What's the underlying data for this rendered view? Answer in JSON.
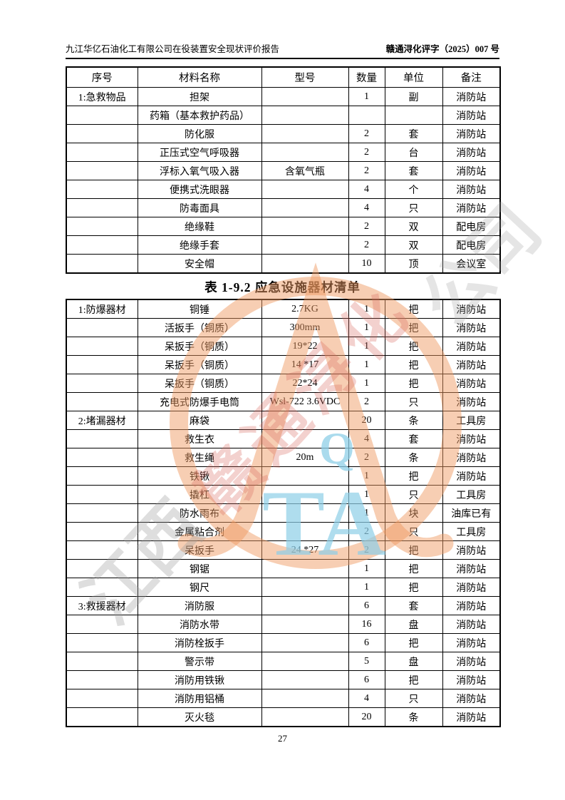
{
  "header": {
    "left": "九江华亿石油化工有限公司在役装置安全现状评价报告",
    "right": "赣通浔化评字（2025）007 号"
  },
  "caption": "表 1-9.2  应急设施器材清单",
  "page_number": "27",
  "table1": {
    "columns": [
      "序号",
      "材料名称",
      "型号",
      "数量",
      "单位",
      "备注"
    ],
    "rows": [
      [
        "1:急救物品",
        "担架",
        "",
        "1",
        "副",
        "消防站"
      ],
      [
        "",
        "药箱（基本救护药品）",
        "",
        "",
        "",
        "消防站"
      ],
      [
        "",
        "防化服",
        "",
        "2",
        "套",
        "消防站"
      ],
      [
        "",
        "正压式空气呼吸器",
        "",
        "2",
        "台",
        "消防站"
      ],
      [
        "",
        "浮标入氧气吸入器",
        "含氧气瓶",
        "2",
        "套",
        "消防站"
      ],
      [
        "",
        "便携式洗眼器",
        "",
        "4",
        "个",
        "消防站"
      ],
      [
        "",
        "防毒面具",
        "",
        "4",
        "只",
        "消防站"
      ],
      [
        "",
        "绝缘鞋",
        "",
        "2",
        "双",
        "配电房"
      ],
      [
        "",
        "绝缘手套",
        "",
        "2",
        "双",
        "配电房"
      ],
      [
        "",
        "安全帽",
        "",
        "10",
        "顶",
        "会议室"
      ]
    ]
  },
  "table2": {
    "rows": [
      [
        "1:防爆器材",
        "铜锤",
        "2.7KG",
        "1",
        "把",
        "消防站"
      ],
      [
        "",
        "活扳手（铜质）",
        "300mm",
        "1",
        "把",
        "消防站"
      ],
      [
        "",
        "呆扳手（铜质）",
        "19*22",
        "1",
        "把",
        "消防站"
      ],
      [
        "",
        "呆扳手（铜质）",
        "14 *17",
        "1",
        "把",
        "消防站"
      ],
      [
        "",
        "呆扳手（铜质）",
        "22*24",
        "1",
        "把",
        "消防站"
      ],
      [
        "",
        "充电式防爆手电筒",
        "Wsl-722 3.6VDC",
        "2",
        "只",
        "消防站"
      ],
      [
        "2:堵漏器材",
        "麻袋",
        "",
        "20",
        "条",
        "工具房"
      ],
      [
        "",
        "救生衣",
        "",
        "4",
        "套",
        "消防站"
      ],
      [
        "",
        "救生绳",
        "20m",
        "2",
        "条",
        "消防站"
      ],
      [
        "",
        "铁锹",
        "",
        "1",
        "把",
        "消防站"
      ],
      [
        "",
        "撬杠",
        "",
        "1",
        "只",
        "工具房"
      ],
      [
        "",
        "防水雨布",
        "",
        "1",
        "块",
        "油库已有"
      ],
      [
        "",
        "金属粘合剂",
        "",
        "2",
        "只",
        "工具房"
      ],
      [
        "",
        "呆扳手",
        "24 *27",
        "2",
        "把",
        "消防站"
      ],
      [
        "",
        "钢锯",
        "",
        "1",
        "把",
        "消防站"
      ],
      [
        "",
        "钢尺",
        "",
        "1",
        "把",
        "消防站"
      ],
      [
        "3:救援器材",
        "消防服",
        "",
        "6",
        "套",
        "消防站"
      ],
      [
        "",
        "消防水带",
        "",
        "16",
        "盘",
        "消防站"
      ],
      [
        "",
        "消防栓扳手",
        "",
        "6",
        "把",
        "消防站"
      ],
      [
        "",
        "警示带",
        "",
        "5",
        "盘",
        "消防站"
      ],
      [
        "",
        "消防用铁锹",
        "",
        "6",
        "把",
        "消防站"
      ],
      [
        "",
        "消防用铝桶",
        "",
        "4",
        "只",
        "消防站"
      ],
      [
        "",
        "灭火毯",
        "",
        "20",
        "条",
        "消防站"
      ]
    ]
  },
  "watermark": {
    "gray_fragment_bottom_left": "江西",
    "red_fragment_middle": "赣通浔化",
    "gray_fragment_top_right": "公司",
    "blue_small": "Q",
    "blue_large": "TA",
    "colors": {
      "orange_ring": "#ef9960",
      "light_blue": "#8ecfe8",
      "red_text": "#d8685c",
      "gray_text": "#9b9b9b"
    }
  }
}
